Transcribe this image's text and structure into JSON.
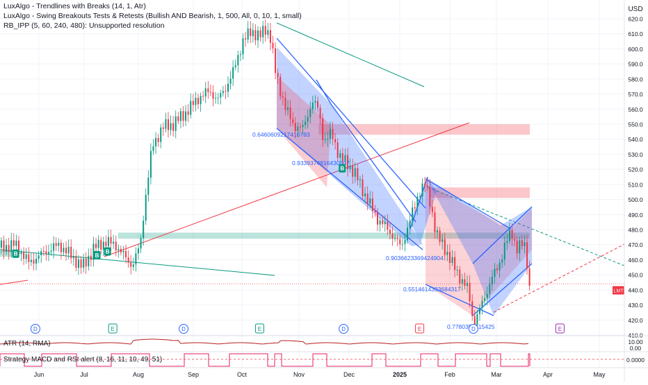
{
  "header": {
    "currency": "USD",
    "indicators": [
      "LuxAlgo - Trendlines with Breaks (14, 1, Atr)",
      "LuxAlgo - Swing Breakouts Tests & Retests (Bullish AND Bearish, 1, 500, All, 0, 10, 1, small)",
      "RB_IPP (5, 60, 240, 480): Unsupported resolution"
    ]
  },
  "price_tag": {
    "label": "LMT",
    "value": "439.70",
    "color": "#f23645"
  },
  "panes": {
    "atr": {
      "label": "ATR (14, RMA)",
      "ticks": [
        "10.00",
        "0.00"
      ]
    },
    "macd": {
      "label": "Strategy MACD and RSI alert (8, 16, 11, 10, 49, 51)",
      "ticks": [
        "0.0000"
      ]
    }
  },
  "chart_data": {
    "type": "candlestick",
    "ylim": [
      405,
      630
    ],
    "yticks": [
      410,
      420,
      430,
      440,
      450,
      460,
      470,
      480,
      490,
      500,
      510,
      520,
      530,
      540,
      550,
      560,
      570,
      580,
      590,
      600,
      610,
      620
    ],
    "xticks": [
      "Jun",
      "Jul",
      "Aug",
      "Sep",
      "Oct",
      "Nov",
      "Dec",
      "2025",
      "Feb",
      "Mar",
      "Apr",
      "May"
    ],
    "last_price": 439.7,
    "price_path": [
      {
        "t": 0.0,
        "p": 468
      },
      {
        "t": 12,
        "p": 470
      },
      {
        "t": 22,
        "p": 458
      },
      {
        "t": 32,
        "p": 464
      },
      {
        "t": 45,
        "p": 470
      },
      {
        "t": 55,
        "p": 462
      },
      {
        "t": 63,
        "p": 455
      },
      {
        "t": 72,
        "p": 468
      },
      {
        "t": 80,
        "p": 472
      },
      {
        "t": 88,
        "p": 470
      },
      {
        "t": 95,
        "p": 462
      },
      {
        "t": 101,
        "p": 456
      },
      {
        "t": 107,
        "p": 470
      },
      {
        "t": 110,
        "p": 495
      },
      {
        "t": 116,
        "p": 535
      },
      {
        "t": 124,
        "p": 548
      },
      {
        "t": 132,
        "p": 550
      },
      {
        "t": 142,
        "p": 558
      },
      {
        "t": 152,
        "p": 568
      },
      {
        "t": 160,
        "p": 572
      },
      {
        "t": 166,
        "p": 566
      },
      {
        "t": 172,
        "p": 574
      },
      {
        "t": 178,
        "p": 585
      },
      {
        "t": 185,
        "p": 605
      },
      {
        "t": 192,
        "p": 612
      },
      {
        "t": 198,
        "p": 608
      },
      {
        "t": 203,
        "p": 614
      },
      {
        "t": 207,
        "p": 606
      },
      {
        "t": 209,
        "p": 588
      },
      {
        "t": 213,
        "p": 575
      },
      {
        "t": 218,
        "p": 560
      },
      {
        "t": 224,
        "p": 549
      },
      {
        "t": 231,
        "p": 547
      },
      {
        "t": 238,
        "p": 565
      },
      {
        "t": 243,
        "p": 560
      },
      {
        "t": 247,
        "p": 538
      },
      {
        "t": 253,
        "p": 544
      },
      {
        "t": 259,
        "p": 528
      },
      {
        "t": 265,
        "p": 524
      },
      {
        "t": 272,
        "p": 515
      },
      {
        "t": 280,
        "p": 500
      },
      {
        "t": 288,
        "p": 487
      },
      {
        "t": 296,
        "p": 480
      },
      {
        "t": 302,
        "p": 473
      },
      {
        "t": 306,
        "p": 468
      },
      {
        "t": 311,
        "p": 482
      },
      {
        "t": 316,
        "p": 495
      },
      {
        "t": 320,
        "p": 506
      },
      {
        "t": 324,
        "p": 510
      },
      {
        "t": 328,
        "p": 498
      },
      {
        "t": 333,
        "p": 476
      },
      {
        "t": 339,
        "p": 468
      },
      {
        "t": 345,
        "p": 457
      },
      {
        "t": 351,
        "p": 448
      },
      {
        "t": 357,
        "p": 440
      },
      {
        "t": 361,
        "p": 418
      },
      {
        "t": 365,
        "p": 425
      },
      {
        "t": 370,
        "p": 436
      },
      {
        "t": 375,
        "p": 448
      },
      {
        "t": 380,
        "p": 455
      },
      {
        "t": 385,
        "p": 470
      },
      {
        "t": 390,
        "p": 478
      },
      {
        "t": 394,
        "p": 468
      },
      {
        "t": 398,
        "p": 470
      },
      {
        "t": 401,
        "p": 467
      },
      {
        "t": 404,
        "p": 439.7
      }
    ],
    "zones": [
      {
        "type": "resistance",
        "top": 550,
        "bottom": 543,
        "start_t": 243,
        "end_t": 404
      },
      {
        "type": "resistance",
        "top": 508,
        "bottom": 501,
        "start_t": 328,
        "end_t": 404
      },
      {
        "type": "support",
        "top": 478,
        "bottom": 474,
        "start_t": 90,
        "end_t": 404
      },
      {
        "type": "support",
        "top": 466,
        "bottom": 462,
        "start_t": 0,
        "end_t": 12
      }
    ],
    "channels": [
      {
        "label": "0.6460609217410783",
        "color": "#2962ff"
      },
      {
        "label": "0.9339374816430307",
        "color": "#2962ff"
      },
      {
        "label": "0.9036623369424904",
        "color": "#2962ff"
      },
      {
        "label": "0.5514614333684317",
        "color": "#2962ff"
      },
      {
        "label": "0.7780352615425",
        "color": "#2962ff"
      }
    ],
    "events": {
      "D": [
        27,
        140,
        262,
        361
      ],
      "E": [
        86,
        198,
        320,
        427
      ]
    },
    "signals": {
      "B": [
        12,
        74,
        82,
        261
      ]
    }
  }
}
